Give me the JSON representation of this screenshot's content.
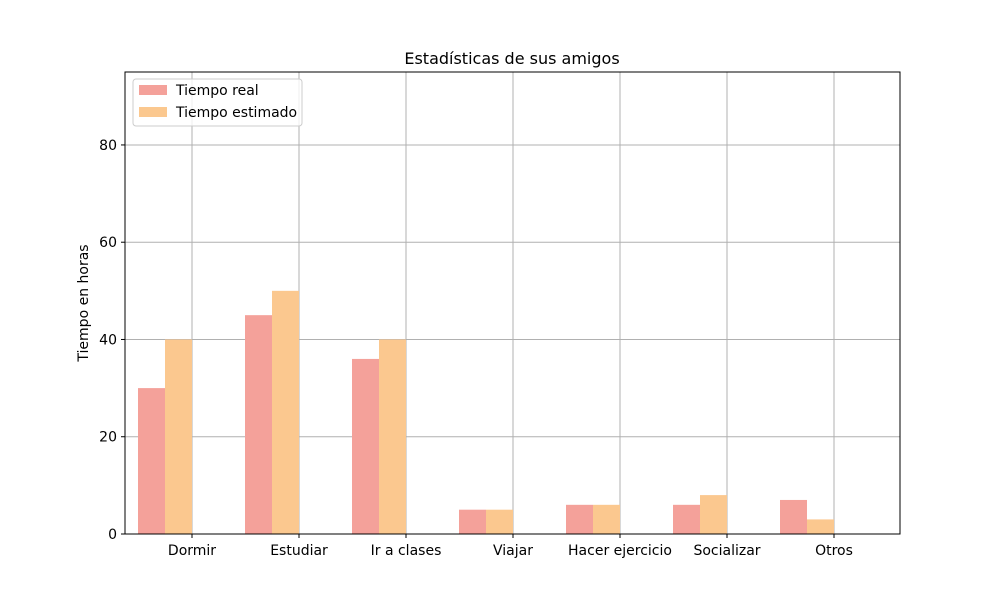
{
  "chart_data": {
    "type": "bar",
    "title": "Estadísticas de sus amigos",
    "xlabel": "",
    "ylabel": "Tiempo en horas",
    "categories": [
      "Dormir",
      "Estudiar",
      "Ir a clases",
      "Viajar",
      "Hacer ejercicio",
      "Socializar",
      "Otros"
    ],
    "series": [
      {
        "name": "Tiempo real",
        "color": "#f4a19a",
        "values": [
          30,
          45,
          36,
          5,
          6,
          6,
          7
        ]
      },
      {
        "name": "Tiempo estimado",
        "color": "#fbc88f",
        "values": [
          40,
          50,
          40,
          5,
          6,
          8,
          3
        ]
      }
    ],
    "ylim": [
      0,
      95
    ],
    "yticks": [
      0,
      20,
      40,
      60,
      80
    ],
    "grid": true,
    "legend_position": "top-left"
  }
}
